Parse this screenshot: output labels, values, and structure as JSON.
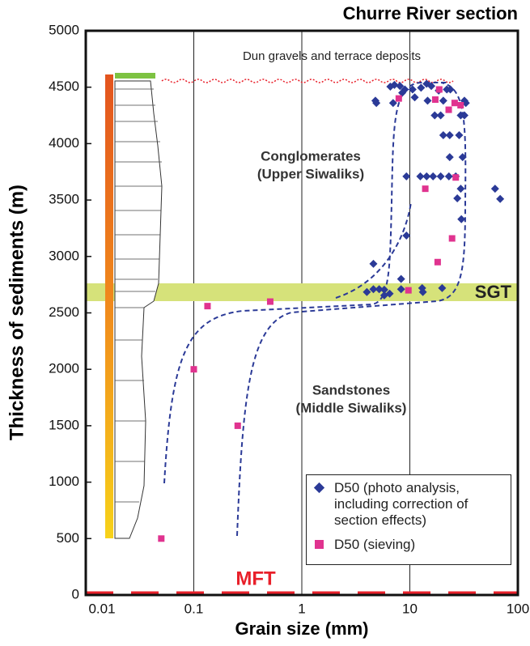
{
  "chart_data": {
    "type": "scatter",
    "title": "Churre River section",
    "x_label": "Grain size (mm)",
    "y_label": "Thickness of sediments (m)",
    "xlim": [
      0.01,
      100
    ],
    "xticks": [
      0.01,
      0.1,
      1,
      10,
      100
    ],
    "x_log": true,
    "ylim": [
      0,
      5000
    ],
    "yticks": [
      0,
      500,
      1000,
      1500,
      2000,
      2500,
      3000,
      3500,
      4000,
      4500,
      5000
    ],
    "grid": true,
    "annotations": [
      "Dun gravels and terrace deposits",
      "Conglomerates",
      "(Upper Siwaliks)",
      "Sandstones",
      "(Middle Siwaliks)",
      "SGT",
      "MFT"
    ],
    "series": [
      {
        "name": "D50 (photo analysis, including correction of section effects)",
        "marker": "diamond",
        "color": "#2b3a97",
        "x": [
          4.8,
          4.9,
          6.6,
          7.0,
          7.2,
          8.1,
          9.0,
          10.6,
          12.7,
          14.3,
          15.8,
          18.5,
          22,
          8.5,
          11.1,
          14.6,
          20.4,
          23.7,
          32,
          33,
          32,
          17,
          19.3,
          29.6,
          20.4,
          23.4,
          28.6,
          23.4,
          30.8,
          9.3,
          12.5,
          14.3,
          16.4,
          19.3,
          23,
          26.6,
          61.5,
          68.6,
          29.6,
          27.5,
          30,
          9.3,
          4.6,
          8.3,
          4.6,
          4.0,
          5.2,
          5.8,
          6.5,
          5.8,
          8.3,
          13.2,
          13,
          19.9
        ],
        "values": [
          4380,
          4360,
          4505,
          4360,
          4520,
          4510,
          4480,
          4480,
          4495,
          4530,
          4510,
          4470,
          4480,
          4450,
          4410,
          4380,
          4380,
          4480,
          4380,
          4360,
          4250,
          4250,
          4250,
          4250,
          4075,
          4075,
          4075,
          3880,
          3880,
          3710,
          3710,
          3710,
          3710,
          3710,
          3710,
          3710,
          3600,
          3510,
          3600,
          3515,
          3330,
          3185,
          2935,
          2800,
          2710,
          2685,
          2710,
          2705,
          2670,
          2655,
          2710,
          2685,
          2720,
          2720
        ]
      },
      {
        "name": "D50 (sieving)",
        "marker": "square",
        "color": "#e0338f",
        "x": [
          0.05,
          0.1,
          0.134,
          0.255,
          0.51,
          9.7,
          7.9,
          13.9,
          17.2,
          18.1,
          18.7,
          22.9,
          24.6,
          26.6,
          26,
          29.5
        ],
        "values": [
          500,
          2000,
          2560,
          1500,
          2600,
          2700,
          4400,
          3600,
          4390,
          2950,
          4480,
          4300,
          3160,
          3700,
          4360,
          4340
        ]
      }
    ]
  }
}
